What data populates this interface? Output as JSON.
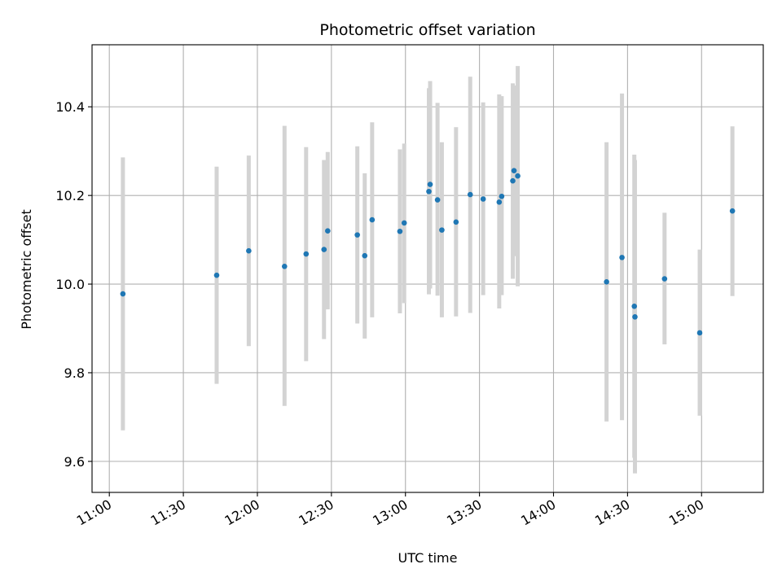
{
  "chart_data": {
    "type": "scatter",
    "title": "Photometric offset variation",
    "xlabel": "UTC time",
    "ylabel": "Photometric offset",
    "x_range": [
      "10:53",
      "15:25"
    ],
    "ylim": [
      9.53,
      10.54
    ],
    "x_ticks": [
      "11:00",
      "11:30",
      "12:00",
      "12:30",
      "13:00",
      "13:30",
      "14:00",
      "14:30",
      "15:00"
    ],
    "y_ticks": [
      "9.6",
      "9.8",
      "10.0",
      "10.2",
      "10.4"
    ],
    "grid": true,
    "marker_color": "#1f77b4",
    "errorbar_color": "#d3d3d3",
    "points": [
      {
        "t": "11:05:30",
        "y": 9.978,
        "low": 9.67,
        "high": 10.286
      },
      {
        "t": "11:43:30",
        "y": 10.02,
        "low": 9.775,
        "high": 10.265
      },
      {
        "t": "11:56:30",
        "y": 10.075,
        "low": 9.86,
        "high": 10.29
      },
      {
        "t": "12:11:00",
        "y": 10.04,
        "low": 9.725,
        "high": 10.357
      },
      {
        "t": "12:19:45",
        "y": 10.068,
        "low": 9.826,
        "high": 10.309
      },
      {
        "t": "12:27:00",
        "y": 10.078,
        "low": 9.876,
        "high": 10.28
      },
      {
        "t": "12:28:30",
        "y": 10.12,
        "low": 9.943,
        "high": 10.298
      },
      {
        "t": "12:40:30",
        "y": 10.111,
        "low": 9.911,
        "high": 10.311
      },
      {
        "t": "12:43:30",
        "y": 10.064,
        "low": 9.877,
        "high": 10.25
      },
      {
        "t": "12:46:30",
        "y": 10.145,
        "low": 9.925,
        "high": 10.365
      },
      {
        "t": "12:57:45",
        "y": 10.119,
        "low": 9.934,
        "high": 10.304
      },
      {
        "t": "12:59:30",
        "y": 10.138,
        "low": 9.957,
        "high": 10.317
      },
      {
        "t": "13:09:30",
        "y": 10.209,
        "low": 9.977,
        "high": 10.442
      },
      {
        "t": "13:10:00",
        "y": 10.225,
        "low": 9.99,
        "high": 10.458
      },
      {
        "t": "13:13:00",
        "y": 10.19,
        "low": 9.974,
        "high": 10.409
      },
      {
        "t": "13:14:45",
        "y": 10.122,
        "low": 9.925,
        "high": 10.32
      },
      {
        "t": "13:20:30",
        "y": 10.14,
        "low": 9.927,
        "high": 10.354
      },
      {
        "t": "13:26:15",
        "y": 10.202,
        "low": 9.935,
        "high": 10.468
      },
      {
        "t": "13:31:30",
        "y": 10.192,
        "low": 9.975,
        "high": 10.41
      },
      {
        "t": "13:38:00",
        "y": 10.185,
        "low": 9.945,
        "high": 10.428
      },
      {
        "t": "13:39:00",
        "y": 10.198,
        "low": 9.975,
        "high": 10.424
      },
      {
        "t": "13:43:30",
        "y": 10.233,
        "low": 10.012,
        "high": 10.453
      },
      {
        "t": "13:44:00",
        "y": 10.256,
        "low": 10.063,
        "high": 10.448
      },
      {
        "t": "13:45:30",
        "y": 10.244,
        "low": 9.995,
        "high": 10.492
      },
      {
        "t": "14:21:30",
        "y": 10.005,
        "low": 9.69,
        "high": 10.32
      },
      {
        "t": "14:27:45",
        "y": 10.06,
        "low": 9.693,
        "high": 10.43
      },
      {
        "t": "14:32:45",
        "y": 9.95,
        "low": 9.608,
        "high": 10.292
      },
      {
        "t": "14:33:00",
        "y": 9.926,
        "low": 9.573,
        "high": 10.28
      },
      {
        "t": "14:45:00",
        "y": 10.012,
        "low": 9.864,
        "high": 10.161
      },
      {
        "t": "14:59:15",
        "y": 9.89,
        "low": 9.703,
        "high": 10.078
      },
      {
        "t": "15:12:30",
        "y": 10.165,
        "low": 9.973,
        "high": 10.356
      }
    ]
  }
}
